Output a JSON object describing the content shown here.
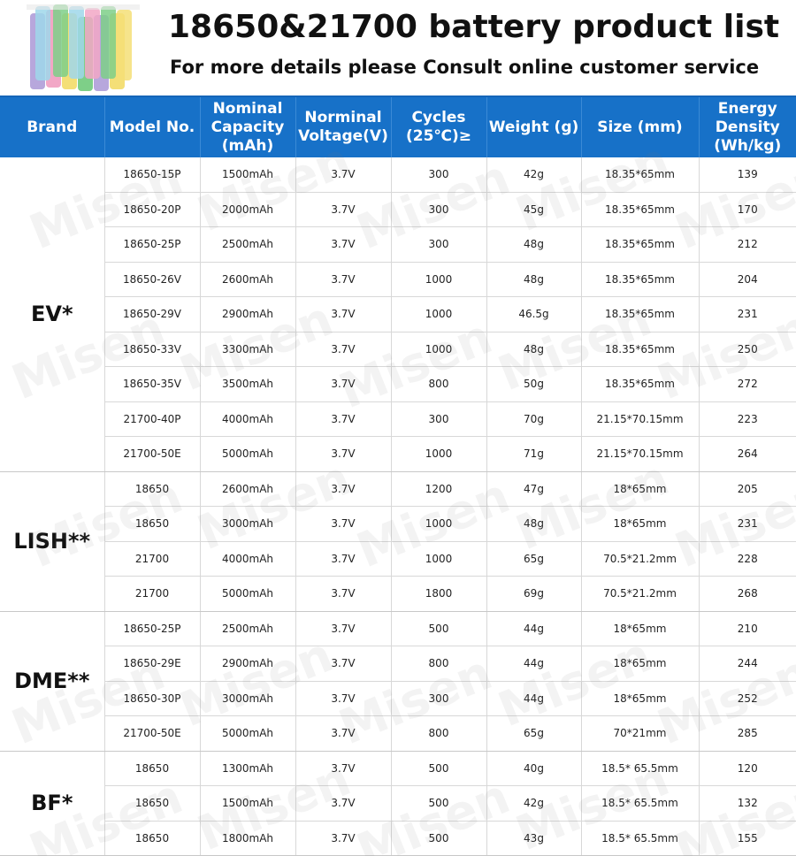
{
  "header": {
    "title": "18650&21700 battery product list",
    "subtitle": "For more details please Consult online customer service"
  },
  "watermark": "Misen",
  "columns": [
    "Brand",
    "Model No.",
    "Nominal Capacity (mAh)",
    "Norminal Voltage(V)",
    "Cycles (25℃)≥",
    "Weight (g)",
    "Size (mm)",
    "Energy Density (Wh/kg)"
  ],
  "groups": [
    {
      "brand": "EV*",
      "rows": [
        [
          "18650-15P",
          "1500mAh",
          "3.7V",
          "300",
          "42g",
          "18.35*65mm",
          "139"
        ],
        [
          "18650-20P",
          "2000mAh",
          "3.7V",
          "300",
          "45g",
          "18.35*65mm",
          "170"
        ],
        [
          "18650-25P",
          "2500mAh",
          "3.7V",
          "300",
          "48g",
          "18.35*65mm",
          "212"
        ],
        [
          "18650-26V",
          "2600mAh",
          "3.7V",
          "1000",
          "48g",
          "18.35*65mm",
          "204"
        ],
        [
          "18650-29V",
          "2900mAh",
          "3.7V",
          "1000",
          "46.5g",
          "18.35*65mm",
          "231"
        ],
        [
          "18650-33V",
          "3300mAh",
          "3.7V",
          "1000",
          "48g",
          "18.35*65mm",
          "250"
        ],
        [
          "18650-35V",
          "3500mAh",
          "3.7V",
          "800",
          "50g",
          "18.35*65mm",
          "272"
        ],
        [
          "21700-40P",
          "4000mAh",
          "3.7V",
          "300",
          "70g",
          "21.15*70.15mm",
          "223"
        ],
        [
          "21700-50E",
          "5000mAh",
          "3.7V",
          "1000",
          "71g",
          "21.15*70.15mm",
          "264"
        ]
      ]
    },
    {
      "brand": "LISH**",
      "rows": [
        [
          "18650",
          "2600mAh",
          "3.7V",
          "1200",
          "47g",
          "18*65mm",
          "205"
        ],
        [
          "18650",
          "3000mAh",
          "3.7V",
          "1000",
          "48g",
          "18*65mm",
          "231"
        ],
        [
          "21700",
          "4000mAh",
          "3.7V",
          "1000",
          "65g",
          "70.5*21.2mm",
          "228"
        ],
        [
          "21700",
          "5000mAh",
          "3.7V",
          "1800",
          "69g",
          "70.5*21.2mm",
          "268"
        ]
      ]
    },
    {
      "brand": "DME**",
      "rows": [
        [
          "18650-25P",
          "2500mAh",
          "3.7V",
          "500",
          "44g",
          "18*65mm",
          "210"
        ],
        [
          "18650-29E",
          "2900mAh",
          "3.7V",
          "800",
          "44g",
          "18*65mm",
          "244"
        ],
        [
          "18650-30P",
          "3000mAh",
          "3.7V",
          "300",
          "44g",
          "18*65mm",
          "252"
        ],
        [
          "21700-50E",
          "5000mAh",
          "3.7V",
          "800",
          "65g",
          "70*21mm",
          "285"
        ]
      ]
    },
    {
      "brand": "BF*",
      "rows": [
        [
          "18650",
          "1300mAh",
          "3.7V",
          "500",
          "40g",
          "18.5* 65.5mm",
          "120"
        ],
        [
          "18650",
          "1500mAh",
          "3.7V",
          "500",
          "42g",
          "18.5* 65.5mm",
          "132"
        ],
        [
          "18650",
          "1800mAh",
          "3.7V",
          "500",
          "43g",
          "18.5* 65.5mm",
          "155"
        ]
      ]
    }
  ],
  "colors": {
    "header_bar": "#1771c8",
    "header_text": "#ffffff",
    "grid_line": "#d8d8d8"
  }
}
